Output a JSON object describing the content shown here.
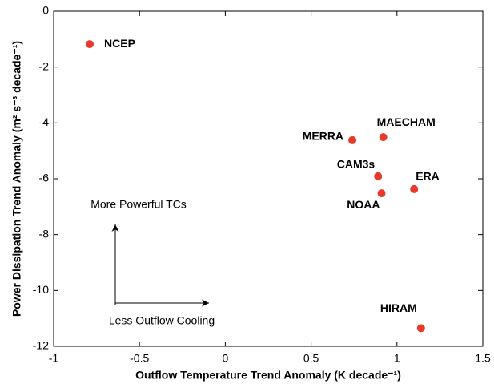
{
  "chart_data": {
    "type": "scatter",
    "xlabel": "Outflow Temperature Trend Anomaly (K decade⁻¹)",
    "ylabel": "Power Dissipation Trend Anomaly (m² s⁻³ decade⁻¹)",
    "color": "#e8392c",
    "labels": [
      "NCEP",
      "MERRA",
      "MAECHAM",
      "CAM3s",
      "ERA",
      "NOAA",
      "HIRAM"
    ],
    "x": [
      -0.79,
      0.74,
      0.92,
      0.89,
      1.1,
      0.91,
      1.14
    ],
    "y": [
      -1.18,
      -4.62,
      -4.51,
      -5.91,
      -6.37,
      -6.52,
      -11.35
    ],
    "xlim": [
      -1,
      1.5
    ],
    "xticks": [
      -1,
      -0.5,
      0,
      0.5,
      1,
      1.5
    ],
    "ylim": [
      -12,
      0
    ],
    "yticks": [
      0,
      -2,
      -4,
      -6,
      -8,
      -10,
      -12
    ],
    "annotations": [
      "More Powerful TCs",
      "Less Outflow Cooling"
    ]
  }
}
